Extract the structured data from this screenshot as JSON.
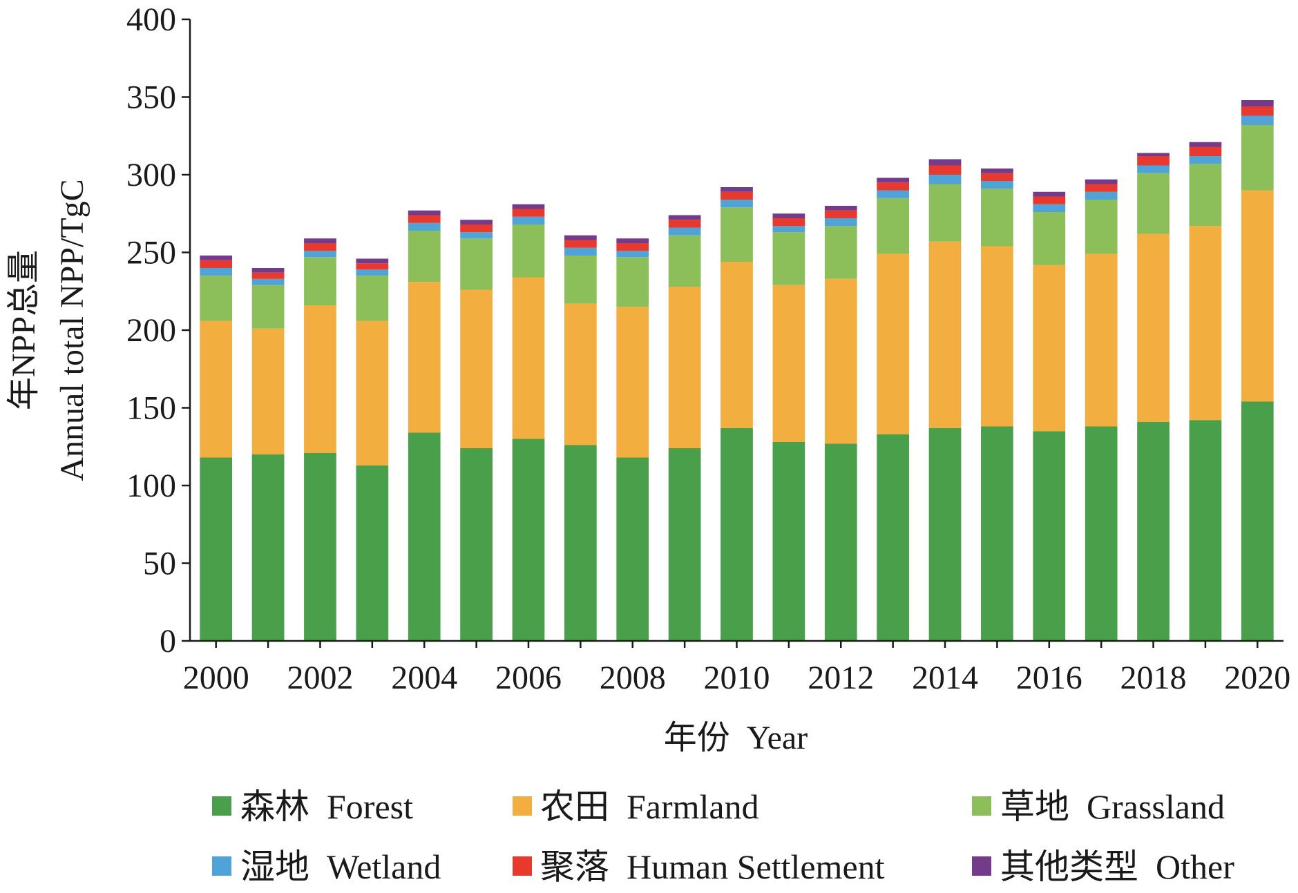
{
  "chart_data": {
    "type": "bar",
    "stacked": true,
    "title": "",
    "xlabel": "年份  Year",
    "ylabel_line1": "年NPP总量",
    "ylabel_line2": "Annual total NPP/TgC",
    "ylim": [
      0,
      400
    ],
    "yticks": [
      0,
      50,
      100,
      150,
      200,
      250,
      300,
      350,
      400
    ],
    "categories": [
      "2000",
      "2001",
      "2002",
      "2003",
      "2004",
      "2005",
      "2006",
      "2007",
      "2008",
      "2009",
      "2010",
      "2011",
      "2012",
      "2013",
      "2014",
      "2015",
      "2016",
      "2017",
      "2018",
      "2019",
      "2020"
    ],
    "xtick_labels": [
      "2000",
      "2002",
      "2004",
      "2006",
      "2008",
      "2010",
      "2012",
      "2014",
      "2016",
      "2018",
      "2020"
    ],
    "legend_position": "bottom",
    "series": [
      {
        "name": "森林  Forest",
        "color": "#4aa04a",
        "values": [
          118,
          120,
          121,
          113,
          134,
          124,
          130,
          126,
          118,
          124,
          137,
          128,
          127,
          133,
          137,
          138,
          135,
          138,
          141,
          142,
          154
        ]
      },
      {
        "name": "农田  Farmland",
        "color": "#f2ae3e",
        "values": [
          88,
          81,
          95,
          93,
          97,
          102,
          104,
          91,
          97,
          104,
          107,
          101,
          106,
          116,
          120,
          116,
          107,
          111,
          121,
          125,
          136
        ]
      },
      {
        "name": "草地  Grassland",
        "color": "#8cbf5a",
        "values": [
          29,
          28,
          31,
          29,
          33,
          33,
          34,
          31,
          32,
          33,
          35,
          34,
          34,
          36,
          37,
          37,
          34,
          35,
          39,
          40,
          42
        ]
      },
      {
        "name": "湿地  Wetland",
        "color": "#4fa3d6",
        "values": [
          5,
          4,
          4,
          4,
          5,
          4,
          5,
          5,
          4,
          5,
          5,
          4,
          5,
          5,
          6,
          5,
          5,
          5,
          5,
          5,
          6
        ]
      },
      {
        "name": "聚落  Human Settlement",
        "color": "#e8392f",
        "values": [
          5,
          4,
          5,
          4,
          5,
          5,
          5,
          5,
          5,
          5,
          5,
          5,
          5,
          5,
          6,
          5,
          5,
          5,
          6,
          6,
          6
        ]
      },
      {
        "name": "其他类型  Other",
        "color": "#753b8b",
        "values": [
          3,
          3,
          3,
          3,
          3,
          3,
          3,
          3,
          3,
          3,
          3,
          3,
          3,
          3,
          4,
          3,
          3,
          3,
          2,
          3,
          4
        ]
      }
    ]
  }
}
